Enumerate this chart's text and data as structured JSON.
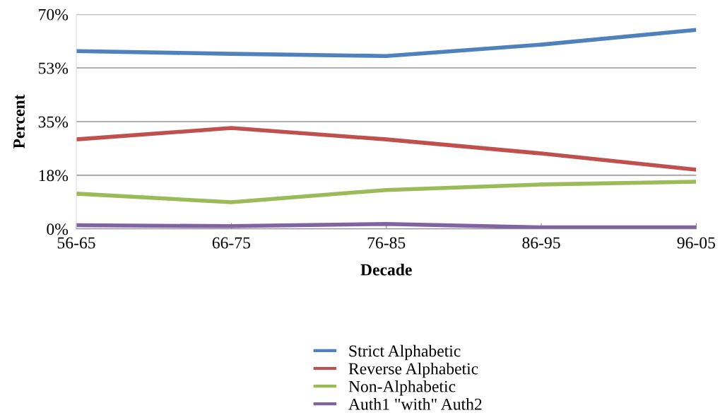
{
  "chart_data": {
    "type": "line",
    "xlabel": "Decade",
    "ylabel": "Percent",
    "categories": [
      "56-65",
      "66-75",
      "76-85",
      "86-95",
      "96-05"
    ],
    "series": [
      {
        "name": "Strict Alphabetic",
        "color": "#4f81bd",
        "values": [
          58.0,
          57.1,
          56.4,
          60.1,
          64.9
        ]
      },
      {
        "name": "Reverse Alphabetic",
        "color": "#c0504d",
        "values": [
          29.2,
          32.9,
          29.2,
          24.6,
          19.3
        ]
      },
      {
        "name": "Non-Alphabetic",
        "color": "#9bbb59",
        "values": [
          11.5,
          8.7,
          12.7,
          14.5,
          15.4
        ]
      },
      {
        "name": "Auth1 \"with\" Auth2",
        "color": "#8064a2",
        "values": [
          1.2,
          0.9,
          1.6,
          0.5,
          0.5
        ]
      }
    ],
    "ylim": [
      0,
      70
    ],
    "yticks": [
      {
        "value": 0,
        "label": "0%"
      },
      {
        "value": 17.5,
        "label": "18%"
      },
      {
        "value": 35,
        "label": "35%"
      },
      {
        "value": 52.5,
        "label": "53%"
      },
      {
        "value": 70,
        "label": "70%"
      }
    ],
    "grid": "y",
    "legend": "bottom",
    "marker": "none",
    "line_style": "solid"
  }
}
